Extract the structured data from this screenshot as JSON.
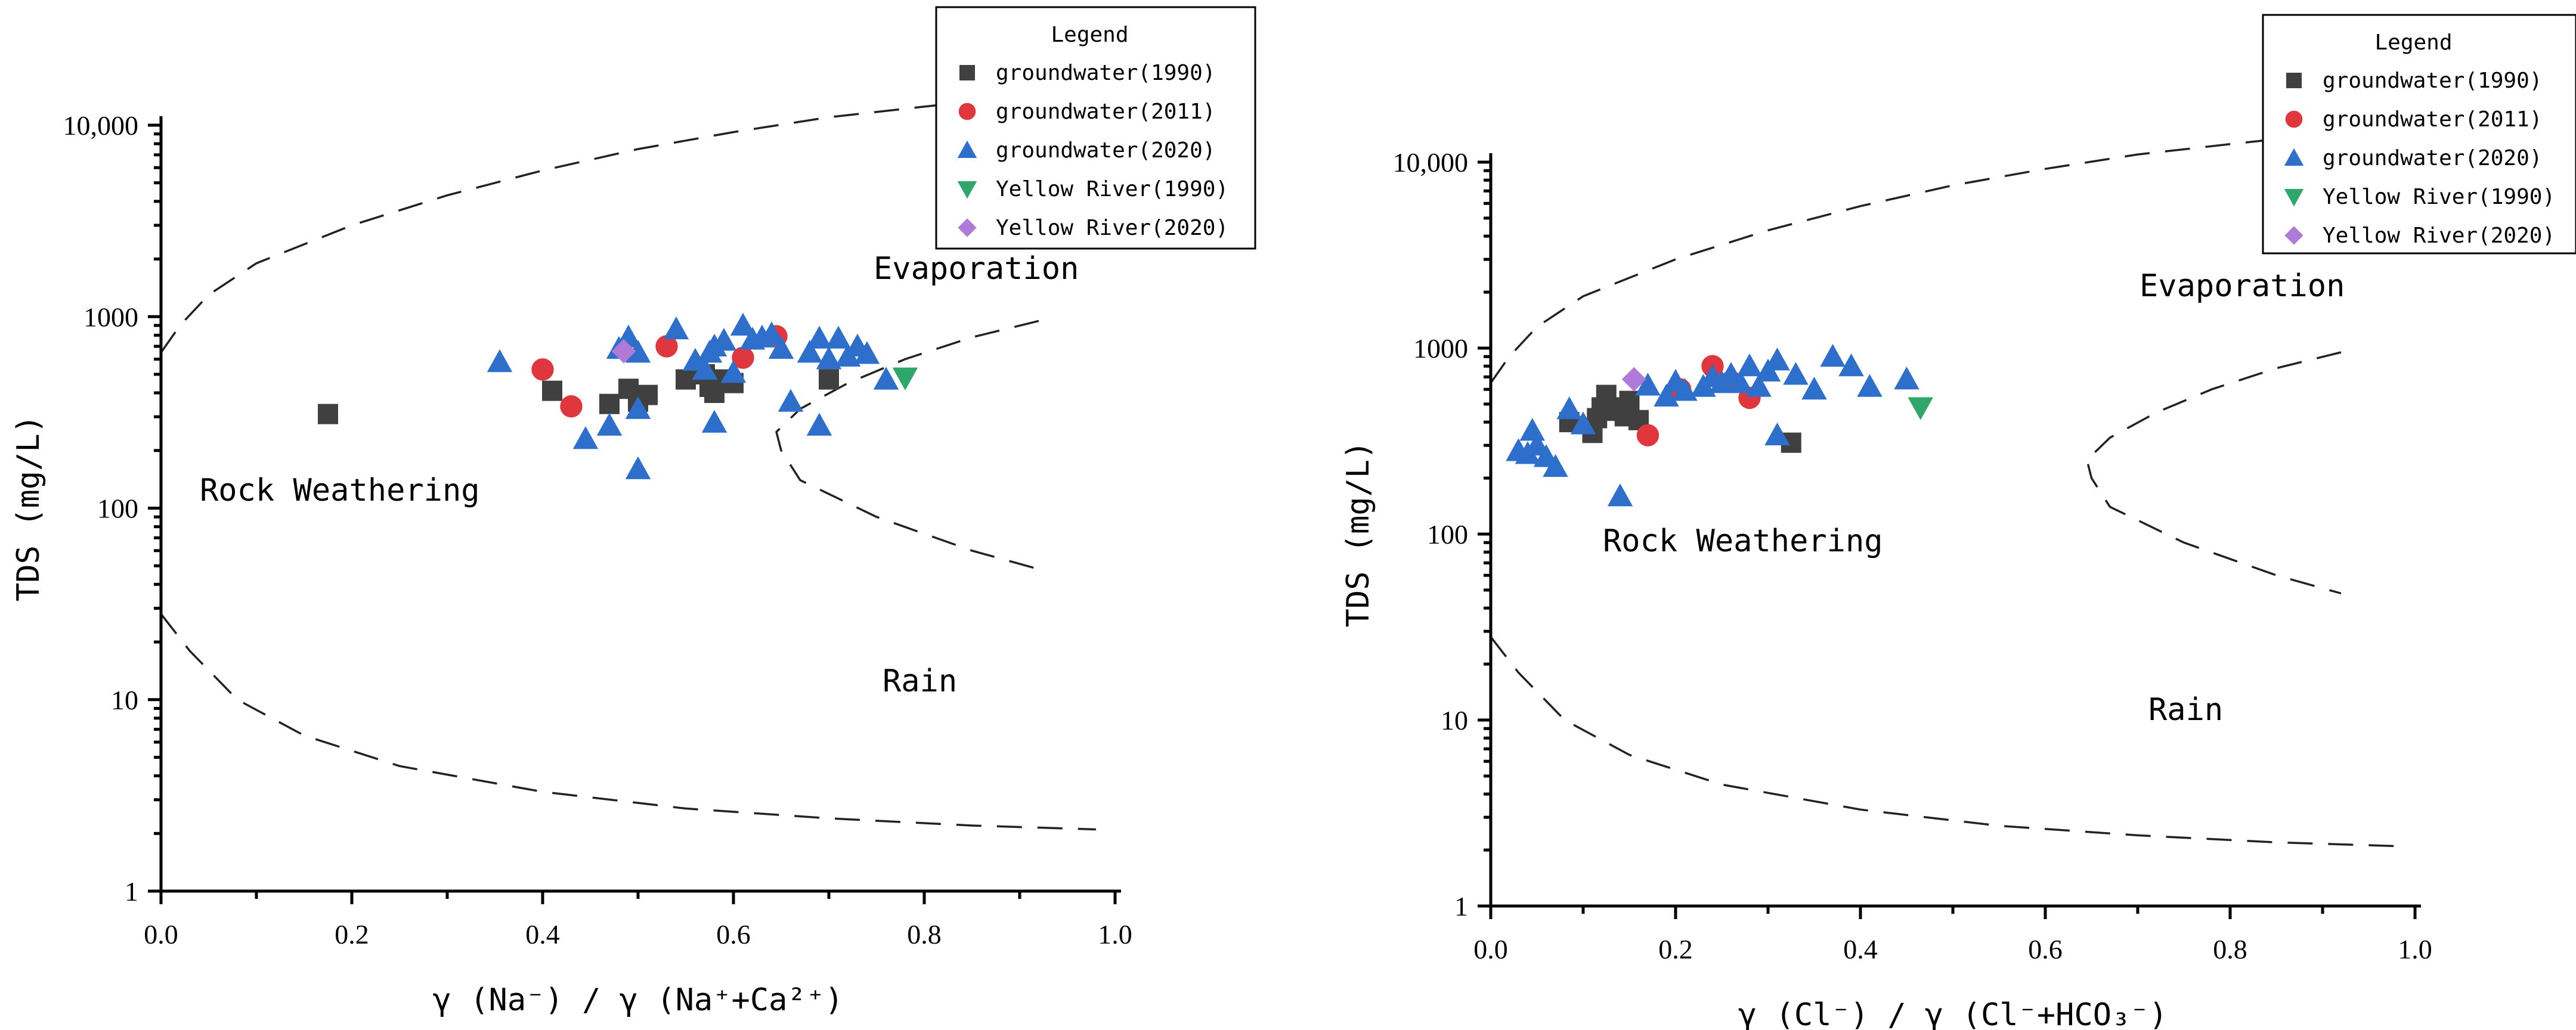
{
  "colors": {
    "groundwater_1990": "#404040",
    "groundwater_2011": "#e0373f",
    "groundwater_2020": "#2f6fcc",
    "yellow_river_1990": "#2fa66a",
    "yellow_river_2020": "#b07ad8"
  },
  "chart_data": [
    {
      "type": "scatter",
      "xlabel": "γ (Na⁻) / γ (Na⁺+Ca²⁺)",
      "ylabel": "TDS (mg/L)",
      "xscale": "linear",
      "yscale": "log",
      "xlim": [
        0.0,
        1.0
      ],
      "ylim": [
        1,
        10000
      ],
      "xticks": [
        "0.0",
        "0.2",
        "0.4",
        "0.6",
        "0.8",
        "1.0"
      ],
      "yticks": [
        "1",
        "10",
        "100",
        "1000",
        "10,000"
      ],
      "region_labels": {
        "rock": "Rock Weathering",
        "evaporation": "Evaporation",
        "rain": "Rain"
      },
      "legend": {
        "title": "Legend",
        "position": "top-right",
        "entries": [
          "groundwater(1990)",
          "groundwater(2011)",
          "groundwater(2020)",
          "Yellow River(1990)",
          "Yellow River(2020)"
        ]
      },
      "envelope": {
        "upper": [
          [
            0.0,
            650
          ],
          [
            0.02,
            900
          ],
          [
            0.05,
            1300
          ],
          [
            0.1,
            1900
          ],
          [
            0.2,
            3000
          ],
          [
            0.3,
            4300
          ],
          [
            0.4,
            5800
          ],
          [
            0.5,
            7500
          ],
          [
            0.6,
            9200
          ],
          [
            0.7,
            11000
          ],
          [
            0.8,
            12500
          ],
          [
            0.85,
            13300
          ]
        ],
        "lower": [
          [
            0.0,
            28
          ],
          [
            0.03,
            18
          ],
          [
            0.08,
            10
          ],
          [
            0.15,
            6.5
          ],
          [
            0.25,
            4.5
          ],
          [
            0.4,
            3.3
          ],
          [
            0.55,
            2.7
          ],
          [
            0.7,
            2.4
          ],
          [
            0.85,
            2.2
          ],
          [
            0.98,
            2.1
          ]
        ],
        "evap_inner": [
          [
            0.92,
            950
          ],
          [
            0.85,
            780
          ],
          [
            0.78,
            600
          ],
          [
            0.72,
            450
          ],
          [
            0.67,
            330
          ],
          [
            0.645,
            250
          ],
          [
            0.65,
            200
          ],
          [
            0.67,
            140
          ],
          [
            0.75,
            90
          ],
          [
            0.85,
            60
          ],
          [
            0.92,
            48
          ]
        ]
      },
      "series": [
        {
          "name": "groundwater(1990)",
          "marker": "square",
          "points": [
            [
              0.175,
              310
            ],
            [
              0.41,
              410
            ],
            [
              0.47,
              350
            ],
            [
              0.49,
              420
            ],
            [
              0.5,
              360
            ],
            [
              0.51,
              390
            ],
            [
              0.55,
              470
            ],
            [
              0.57,
              500
            ],
            [
              0.58,
              400
            ],
            [
              0.58,
              440
            ],
            [
              0.59,
              470
            ],
            [
              0.6,
              450
            ],
            [
              0.7,
              470
            ],
            [
              0.575,
              430
            ]
          ]
        },
        {
          "name": "groundwater(2011)",
          "marker": "circle",
          "points": [
            [
              0.4,
              530
            ],
            [
              0.43,
              340
            ],
            [
              0.53,
              700
            ],
            [
              0.61,
              610
            ],
            [
              0.645,
              790
            ]
          ]
        },
        {
          "name": "groundwater(2020)",
          "marker": "triangle-up",
          "points": [
            [
              0.355,
              580
            ],
            [
              0.445,
              230
            ],
            [
              0.47,
              270
            ],
            [
              0.48,
              680
            ],
            [
              0.49,
              780
            ],
            [
              0.5,
              650
            ],
            [
              0.5,
              330
            ],
            [
              0.5,
              160
            ],
            [
              0.54,
              860
            ],
            [
              0.56,
              590
            ],
            [
              0.57,
              530
            ],
            [
              0.575,
              650
            ],
            [
              0.58,
              700
            ],
            [
              0.58,
              280
            ],
            [
              0.59,
              750
            ],
            [
              0.6,
              510
            ],
            [
              0.61,
              900
            ],
            [
              0.62,
              760
            ],
            [
              0.63,
              780
            ],
            [
              0.64,
              810
            ],
            [
              0.65,
              680
            ],
            [
              0.66,
              360
            ],
            [
              0.68,
              650
            ],
            [
              0.69,
              770
            ],
            [
              0.69,
              270
            ],
            [
              0.7,
              600
            ],
            [
              0.71,
              770
            ],
            [
              0.72,
              620
            ],
            [
              0.73,
              700
            ],
            [
              0.74,
              640
            ],
            [
              0.76,
              470
            ]
          ]
        },
        {
          "name": "Yellow River(1990)",
          "marker": "triangle-down",
          "points": [
            [
              0.78,
              480
            ]
          ]
        },
        {
          "name": "Yellow River(2020)",
          "marker": "diamond",
          "points": [
            [
              0.485,
              660
            ]
          ]
        }
      ]
    },
    {
      "type": "scatter",
      "xlabel": "γ (Cl⁻) / γ (Cl⁻+HCO₃⁻)",
      "ylabel": "TDS (mg/L)",
      "xscale": "linear",
      "yscale": "log",
      "xlim": [
        0.0,
        1.0
      ],
      "ylim": [
        1,
        10000
      ],
      "xticks": [
        "0.0",
        "0.2",
        "0.4",
        "0.6",
        "0.8",
        "1.0"
      ],
      "yticks": [
        "1",
        "10",
        "100",
        "1000",
        "10,000"
      ],
      "region_labels": {
        "rock": "Rock Weathering",
        "evaporation": "Evaporation",
        "rain": "Rain"
      },
      "legend": {
        "title": "Legend",
        "position": "top-right",
        "entries": [
          "groundwater(1990)",
          "groundwater(2011)",
          "groundwater(2020)",
          "Yellow River(1990)",
          "Yellow River(2020)"
        ]
      },
      "envelope": {
        "upper": [
          [
            0.0,
            650
          ],
          [
            0.02,
            900
          ],
          [
            0.05,
            1300
          ],
          [
            0.1,
            1900
          ],
          [
            0.2,
            3000
          ],
          [
            0.3,
            4300
          ],
          [
            0.4,
            5800
          ],
          [
            0.5,
            7500
          ],
          [
            0.6,
            9200
          ],
          [
            0.7,
            11000
          ],
          [
            0.8,
            12500
          ],
          [
            0.85,
            13300
          ]
        ],
        "lower": [
          [
            0.0,
            28
          ],
          [
            0.03,
            18
          ],
          [
            0.08,
            10
          ],
          [
            0.15,
            6.5
          ],
          [
            0.25,
            4.5
          ],
          [
            0.4,
            3.3
          ],
          [
            0.55,
            2.7
          ],
          [
            0.7,
            2.4
          ],
          [
            0.85,
            2.2
          ],
          [
            0.98,
            2.1
          ]
        ],
        "evap_inner": [
          [
            0.92,
            950
          ],
          [
            0.85,
            780
          ],
          [
            0.78,
            600
          ],
          [
            0.72,
            450
          ],
          [
            0.67,
            330
          ],
          [
            0.645,
            250
          ],
          [
            0.65,
            200
          ],
          [
            0.67,
            140
          ],
          [
            0.75,
            90
          ],
          [
            0.85,
            60
          ],
          [
            0.92,
            48
          ]
        ]
      },
      "series": [
        {
          "name": "groundwater(1990)",
          "marker": "square",
          "points": [
            [
              0.085,
              400
            ],
            [
              0.11,
              350
            ],
            [
              0.115,
              420
            ],
            [
              0.12,
              480
            ],
            [
              0.125,
              560
            ],
            [
              0.13,
              460
            ],
            [
              0.14,
              480
            ],
            [
              0.145,
              430
            ],
            [
              0.15,
              520
            ],
            [
              0.16,
              410
            ],
            [
              0.325,
              310
            ]
          ]
        },
        {
          "name": "groundwater(2011)",
          "marker": "circle",
          "points": [
            [
              0.17,
              340
            ],
            [
              0.205,
              600
            ],
            [
              0.24,
              800
            ],
            [
              0.26,
              660
            ],
            [
              0.28,
              540
            ]
          ]
        },
        {
          "name": "groundwater(2020)",
          "marker": "triangle-up",
          "points": [
            [
              0.03,
              280
            ],
            [
              0.04,
              270
            ],
            [
              0.045,
              360
            ],
            [
              0.05,
              300
            ],
            [
              0.06,
              260
            ],
            [
              0.07,
              230
            ],
            [
              0.085,
              470
            ],
            [
              0.1,
              390
            ],
            [
              0.14,
              160
            ],
            [
              0.17,
              630
            ],
            [
              0.19,
              550
            ],
            [
              0.2,
              660
            ],
            [
              0.21,
              590
            ],
            [
              0.23,
              620
            ],
            [
              0.24,
              700
            ],
            [
              0.25,
              650
            ],
            [
              0.26,
              720
            ],
            [
              0.27,
              650
            ],
            [
              0.28,
              800
            ],
            [
              0.29,
              620
            ],
            [
              0.3,
              750
            ],
            [
              0.31,
              860
            ],
            [
              0.31,
              340
            ],
            [
              0.33,
              720
            ],
            [
              0.35,
              600
            ],
            [
              0.37,
              900
            ],
            [
              0.39,
              800
            ],
            [
              0.41,
              620
            ],
            [
              0.45,
              680
            ]
          ]
        },
        {
          "name": "Yellow River(1990)",
          "marker": "triangle-down",
          "points": [
            [
              0.465,
              480
            ]
          ]
        },
        {
          "name": "Yellow River(2020)",
          "marker": "diamond",
          "points": [
            [
              0.155,
              680
            ]
          ]
        }
      ]
    }
  ]
}
